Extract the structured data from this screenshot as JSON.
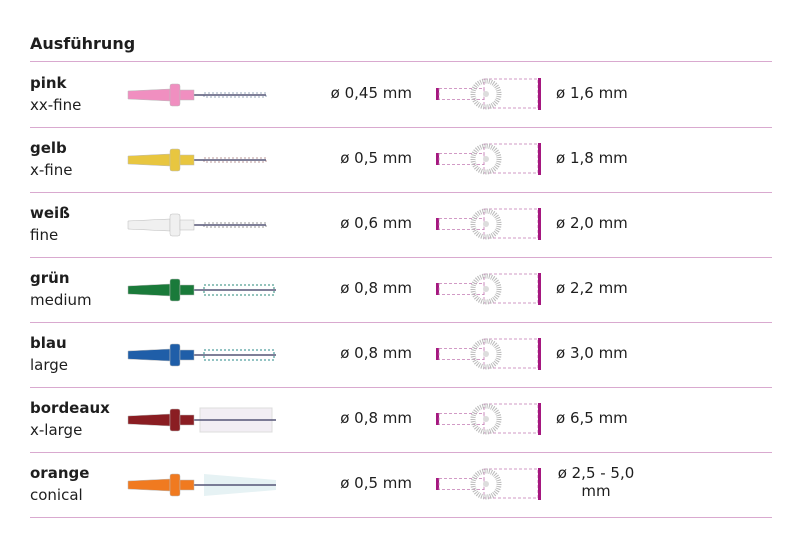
{
  "header": {
    "title": "Ausführung"
  },
  "colors": {
    "divider": "#d9a9cf",
    "diagram_accent": "#a5177f"
  },
  "rows": [
    {
      "name": "pink",
      "size": "xx-fine",
      "inner": "ø 0,45 mm",
      "outer": "ø 1,6 mm",
      "handle_color": "#f08fc0",
      "brush": "thin",
      "bristle_color": "#9ab"
    },
    {
      "name": "gelb",
      "size": "x-fine",
      "inner": "ø 0,5 mm",
      "outer": "ø 1,8 mm",
      "handle_color": "#e8c640",
      "brush": "thin",
      "bristle_color": "#b99"
    },
    {
      "name": "weiß",
      "size": "fine",
      "inner": "ø 0,6 mm",
      "outer": "ø 2,0 mm",
      "handle_color": "#f0f0f0",
      "brush": "thin",
      "bristle_color": "#999"
    },
    {
      "name": "grün",
      "size": "medium",
      "inner": "ø 0,8 mm",
      "outer": "ø 2,2 mm",
      "handle_color": "#1a7a3a",
      "brush": "medium",
      "bristle_color": "#2a8a7a"
    },
    {
      "name": "blau",
      "size": "large",
      "inner": "ø 0,8 mm",
      "outer": "ø 3,0 mm",
      "handle_color": "#1f5ea8",
      "brush": "medium",
      "bristle_color": "#2a8a8a"
    },
    {
      "name": "bordeaux",
      "size": "x-large",
      "inner": "ø 0,8 mm",
      "outer": "ø 6,5 mm",
      "handle_color": "#8a1d22",
      "brush": "large",
      "bristle_color": "#f2eef4"
    },
    {
      "name": "orange",
      "size": "conical",
      "inner": "ø 0,5 mm",
      "outer": "ø 2,5 - 5,0 mm",
      "handle_color": "#f07a20",
      "brush": "conical",
      "bristle_color": "#e6f2f4"
    }
  ]
}
